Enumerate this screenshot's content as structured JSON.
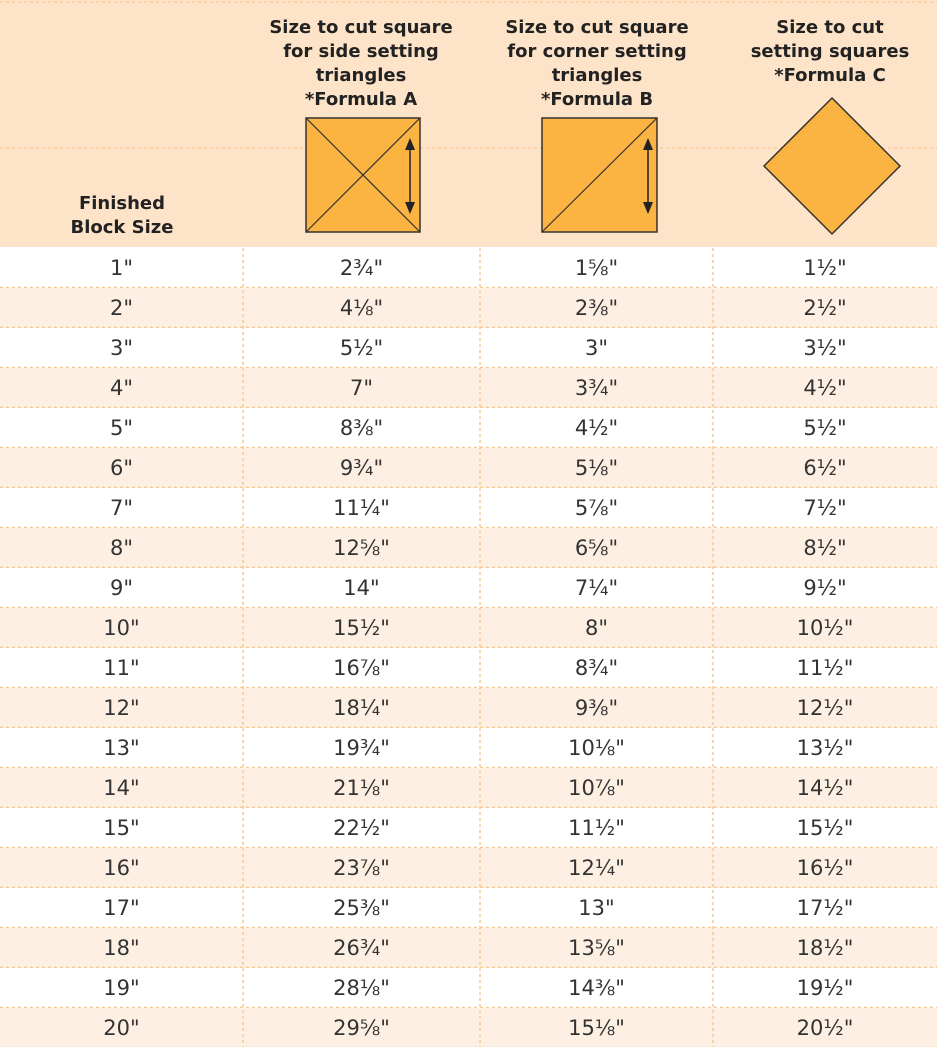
{
  "table": {
    "header": [
      [
        "Finished",
        "Block Size"
      ],
      [
        "Size to cut square",
        "for side setting",
        "triangles",
        "*Formula A"
      ],
      [
        "Size to cut square",
        "for corner setting",
        "triangles",
        "*Formula B"
      ],
      [
        "Size to cut",
        "setting squares",
        "*Formula C"
      ]
    ],
    "rows": [
      [
        "1\"",
        "2¾\"",
        "1⅝\"",
        "1½\""
      ],
      [
        "2\"",
        "4⅛\"",
        "2⅜\"",
        "2½\""
      ],
      [
        "3\"",
        "5½\"",
        "3\"",
        "3½\""
      ],
      [
        "4\"",
        "7\"",
        "3¾\"",
        "4½\""
      ],
      [
        "5\"",
        "8⅜\"",
        "4½\"",
        "5½\""
      ],
      [
        "6\"",
        "9¾\"",
        "5⅛\"",
        "6½\""
      ],
      [
        "7\"",
        "11¼\"",
        "5⅞\"",
        "7½\""
      ],
      [
        "8\"",
        "12⅝\"",
        "6⅝\"",
        "8½\""
      ],
      [
        "9\"",
        "14\"",
        "7¼\"",
        "9½\""
      ],
      [
        "10\"",
        "15½\"",
        "8\"",
        "10½\""
      ],
      [
        "11\"",
        "16⅞\"",
        "8¾\"",
        "11½\""
      ],
      [
        "12\"",
        "18¼\"",
        "9⅜\"",
        "12½\""
      ],
      [
        "13\"",
        "19¾\"",
        "10⅛\"",
        "13½\""
      ],
      [
        "14\"",
        "21⅛\"",
        "10⅞\"",
        "14½\""
      ],
      [
        "15\"",
        "22½\"",
        "11½\"",
        "15½\""
      ],
      [
        "16\"",
        "23⅞\"",
        "12¼\"",
        "16½\""
      ],
      [
        "17\"",
        "25⅜\"",
        "13\"",
        "17½\""
      ],
      [
        "18\"",
        "26¾\"",
        "13⅝\"",
        "18½\""
      ],
      [
        "19\"",
        "28⅛\"",
        "14⅜\"",
        "19½\""
      ],
      [
        "20\"",
        "29⅝\"",
        "15⅛\"",
        "20½\""
      ]
    ]
  }
}
